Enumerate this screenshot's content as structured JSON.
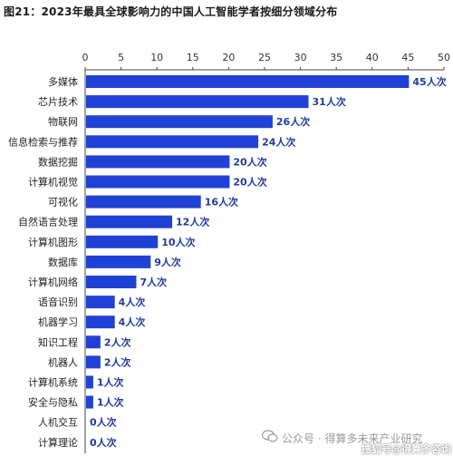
{
  "title": "图21：2023年最具全球影响力的中国人工智能学者按细分领域分布",
  "colors": {
    "bar": "#2041d6",
    "value_label": "#1f3c9e",
    "axis": "#444444"
  },
  "watermark": {
    "wechat": "公众号 · 得算多未来产业研究",
    "sohu": "搜狐号@得算多咨询"
  },
  "chart_data": {
    "type": "bar",
    "orientation": "horizontal",
    "title": "图21：2023年最具全球影响力的中国人工智能学者按细分领域分布",
    "xlabel": "",
    "ylabel": "",
    "xlim": [
      0,
      50
    ],
    "xticks": [
      0,
      5,
      10,
      15,
      20,
      25,
      30,
      35,
      40,
      45,
      50
    ],
    "xaxis_position": "top",
    "grid": false,
    "value_suffix": "人次",
    "categories": [
      "多媒体",
      "芯片技术",
      "物联网",
      "信息检索与推荐",
      "数据挖掘",
      "计算机视觉",
      "可视化",
      "自然语言处理",
      "计算机图形",
      "数据库",
      "计算机网络",
      "语音识别",
      "机器学习",
      "知识工程",
      "机器人",
      "计算机系统",
      "安全与隐私",
      "人机交互",
      "计算理论"
    ],
    "values": [
      45,
      31,
      26,
      24,
      20,
      20,
      16,
      12,
      10,
      9,
      7,
      4,
      4,
      2,
      2,
      1,
      1,
      0,
      0
    ]
  }
}
